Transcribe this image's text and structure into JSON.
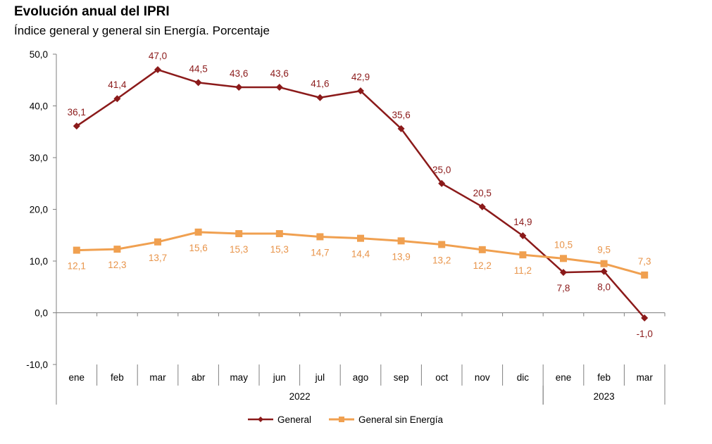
{
  "chart_data": {
    "type": "line",
    "title": "Evolución anual del IPRI",
    "subtitle": "Índice general y general sin Energía. Porcentaje",
    "categories": [
      "ene",
      "feb",
      "mar",
      "abr",
      "may",
      "jun",
      "jul",
      "ago",
      "sep",
      "oct",
      "nov",
      "dic",
      "ene",
      "feb",
      "mar"
    ],
    "year_groups": [
      {
        "label": "2022",
        "start": 0,
        "end": 11
      },
      {
        "label": "2023",
        "start": 12,
        "end": 14
      }
    ],
    "ylim": [
      -10,
      50
    ],
    "yticks": [
      -10,
      0,
      10,
      20,
      30,
      40,
      50
    ],
    "ytick_labels": [
      "-10,0",
      "0,0",
      "10,0",
      "20,0",
      "30,0",
      "40,0",
      "50,0"
    ],
    "grid": false,
    "legend_position": "bottom-center",
    "series": [
      {
        "name": "General",
        "color": "#8b1a1a",
        "marker": "diamond",
        "values": [
          36.1,
          41.4,
          47.0,
          44.5,
          43.6,
          43.6,
          41.6,
          42.9,
          35.6,
          25.0,
          20.5,
          14.9,
          7.8,
          8.0,
          -1.0
        ],
        "labels": [
          "36,1",
          "41,4",
          "47,0",
          "44,5",
          "43,6",
          "43,6",
          "41,6",
          "42,9",
          "35,6",
          "25,0",
          "20,5",
          "14,9",
          "7,8",
          "8,0",
          "-1,0"
        ]
      },
      {
        "name": "General sin Energía",
        "color": "#f0a050",
        "marker": "square",
        "values": [
          12.1,
          12.3,
          13.7,
          15.6,
          15.3,
          15.3,
          14.7,
          14.4,
          13.9,
          13.2,
          12.2,
          11.2,
          10.5,
          9.5,
          7.3
        ],
        "labels": [
          "12,1",
          "12,3",
          "13,7",
          "15,6",
          "15,3",
          "15,3",
          "14,7",
          "14,4",
          "13,9",
          "13,2",
          "12,2",
          "11,2",
          "10,5",
          "9,5",
          "7,3"
        ]
      }
    ]
  }
}
